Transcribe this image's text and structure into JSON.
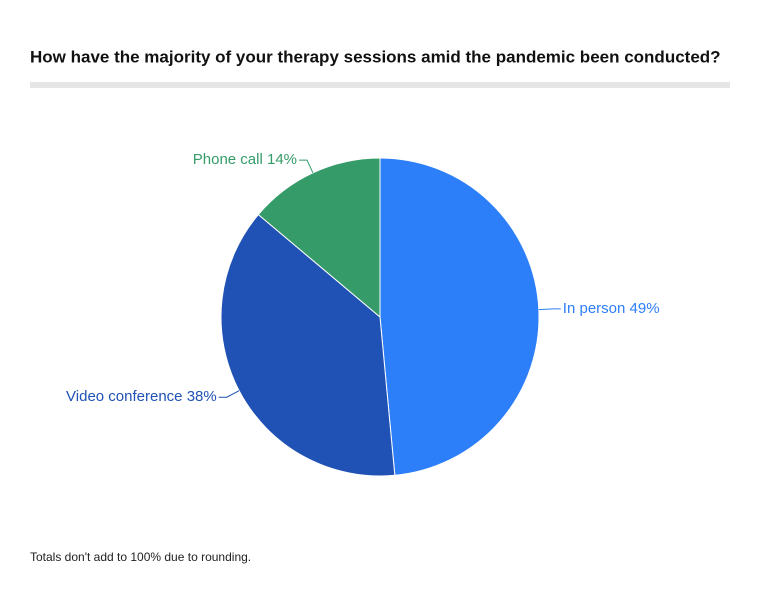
{
  "chart_data": {
    "type": "pie",
    "title": "How have the majority of your therapy sessions amid the pandemic been conducted?",
    "categories": [
      "In person",
      "Video conference",
      "Phone call"
    ],
    "values": [
      49,
      38,
      14
    ],
    "value_labels": [
      "49%",
      "38%",
      "14%"
    ],
    "colors": [
      "#2d7ff9",
      "#1f52b4",
      "#359b68"
    ],
    "note": "Totals don't add to 100% due to rounding."
  }
}
